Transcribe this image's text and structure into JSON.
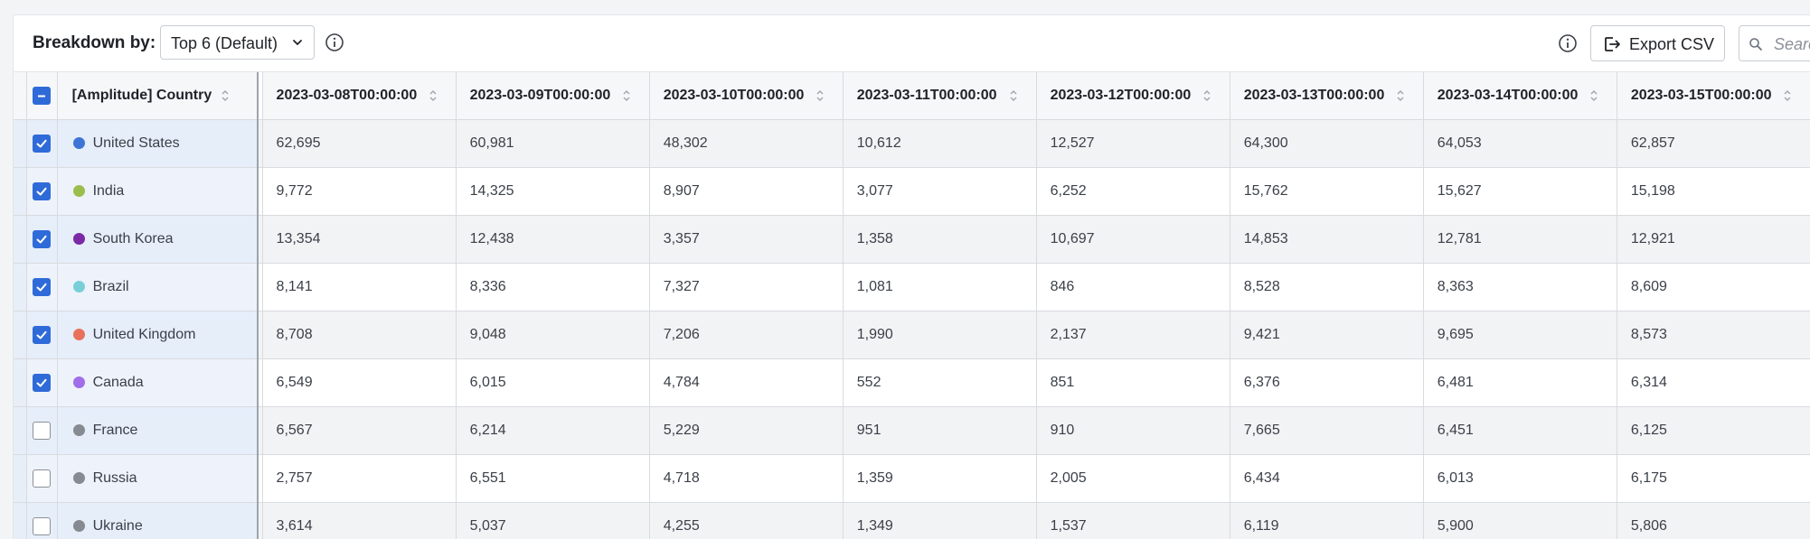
{
  "toolbar": {
    "breakdown_label": "Breakdown by:",
    "dropdown_value": "Top 6 (Default)",
    "export_label": "Export CSV",
    "search_placeholder": "Search"
  },
  "table": {
    "country_header": "[Amplitude] Country",
    "date_headers": [
      "2023-03-08T00:00:00",
      "2023-03-09T00:00:00",
      "2023-03-10T00:00:00",
      "2023-03-11T00:00:00",
      "2023-03-12T00:00:00",
      "2023-03-13T00:00:00",
      "2023-03-14T00:00:00",
      "2023-03-15T00:00:00"
    ],
    "rows": [
      {
        "country": "United States",
        "color": "#3d74d6",
        "checked": true,
        "values": [
          "62,695",
          "60,981",
          "48,302",
          "10,612",
          "12,527",
          "64,300",
          "64,053",
          "62,857"
        ]
      },
      {
        "country": "India",
        "color": "#9bbd4c",
        "checked": true,
        "values": [
          "9,772",
          "14,325",
          "8,907",
          "3,077",
          "6,252",
          "15,762",
          "15,627",
          "15,198"
        ]
      },
      {
        "country": "South Korea",
        "color": "#7b2aa6",
        "checked": true,
        "values": [
          "13,354",
          "12,438",
          "3,357",
          "1,358",
          "10,697",
          "14,853",
          "12,781",
          "12,921"
        ]
      },
      {
        "country": "Brazil",
        "color": "#79cfd8",
        "checked": true,
        "values": [
          "8,141",
          "8,336",
          "7,327",
          "1,081",
          "846",
          "8,528",
          "8,363",
          "8,609"
        ]
      },
      {
        "country": "United Kingdom",
        "color": "#e8715c",
        "checked": true,
        "values": [
          "8,708",
          "9,048",
          "7,206",
          "1,990",
          "2,137",
          "9,421",
          "9,695",
          "8,573"
        ]
      },
      {
        "country": "Canada",
        "color": "#9f6ee8",
        "checked": true,
        "values": [
          "6,549",
          "6,015",
          "4,784",
          "552",
          "851",
          "6,376",
          "6,481",
          "6,314"
        ]
      },
      {
        "country": "France",
        "color": "#868a91",
        "checked": false,
        "values": [
          "6,567",
          "6,214",
          "5,229",
          "951",
          "910",
          "7,665",
          "6,451",
          "6,125"
        ]
      },
      {
        "country": "Russia",
        "color": "#868a91",
        "checked": false,
        "values": [
          "2,757",
          "6,551",
          "4,718",
          "1,359",
          "2,005",
          "6,434",
          "6,013",
          "6,175"
        ]
      },
      {
        "country": "Ukraine",
        "color": "#868a91",
        "checked": false,
        "values": [
          "3,614",
          "5,037",
          "4,255",
          "1,349",
          "1,537",
          "6,119",
          "5,900",
          "5,806"
        ]
      }
    ]
  }
}
